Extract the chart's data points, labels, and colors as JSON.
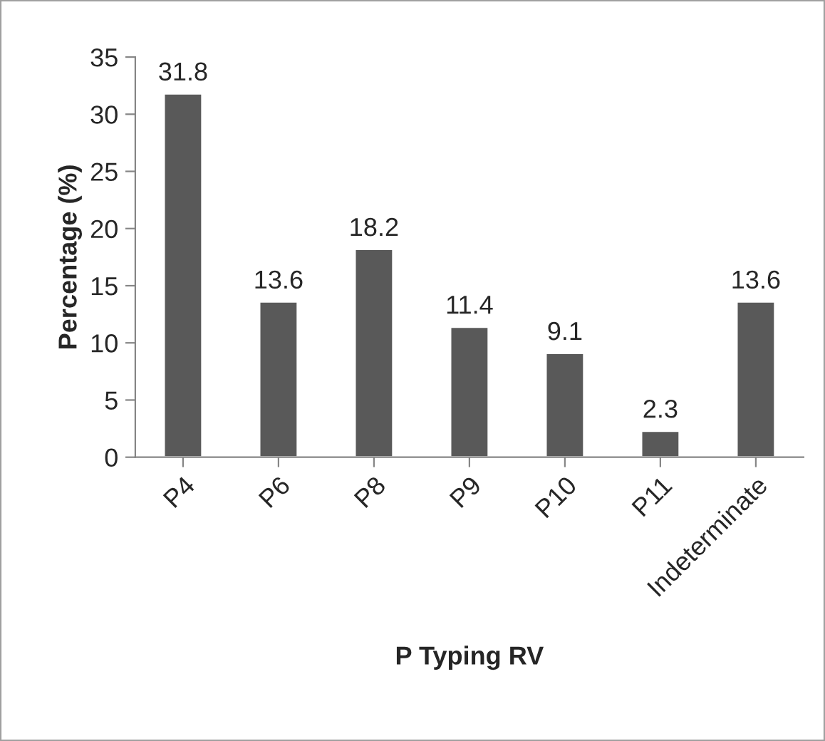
{
  "chart_data": {
    "type": "bar",
    "xlabel": "P Typing RV",
    "ylabel": "Percentage (%)",
    "categories": [
      "P4",
      "P6",
      "P8",
      "P9",
      "P10",
      "P11",
      "Indeterminate"
    ],
    "values": [
      31.8,
      13.6,
      18.2,
      11.4,
      9.1,
      2.3,
      13.6
    ],
    "color": "#595959",
    "ylim": [
      0,
      35
    ],
    "yticks": [
      0,
      5,
      10,
      15,
      20,
      25,
      30,
      35
    ],
    "data_labels": true,
    "grid": false,
    "legend": false
  }
}
